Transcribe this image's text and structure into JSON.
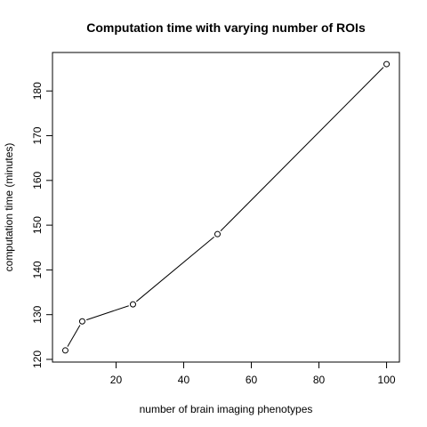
{
  "chart_data": {
    "type": "line",
    "title": "Computation time with varying number of ROIs",
    "xlabel": "number of brain imaging phenotypes",
    "ylabel": "computation time (minutes)",
    "x": [
      5,
      10,
      25,
      50,
      100
    ],
    "y": [
      122,
      128.5,
      132.3,
      148,
      186
    ],
    "xlim": [
      1.2,
      103.8
    ],
    "ylim": [
      119.4,
      188.6
    ],
    "xticks": [
      20,
      40,
      60,
      80,
      100
    ],
    "yticks": [
      120,
      130,
      140,
      150,
      160,
      170,
      180
    ],
    "marker": "open-circle",
    "grid": false,
    "line_color": "#000000"
  }
}
